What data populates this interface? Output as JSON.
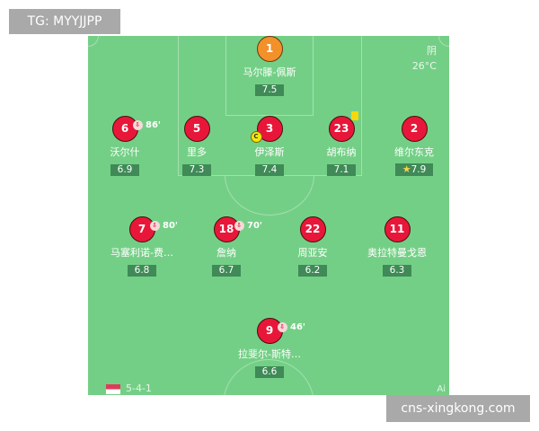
{
  "weather": {
    "condition": "阴",
    "temperature": "26°C"
  },
  "formation": "5-4-1",
  "logo_text": "Ai",
  "watermarks": {
    "top_left": "TG: MYYJJPP",
    "bottom_right": "cns-xingkong.com"
  },
  "colors": {
    "pitch": "#74cf86",
    "player": "#e8173a",
    "goalkeeper": "#f2902a",
    "rating_bg": "#3f8a57"
  },
  "players": [
    {
      "number": "1",
      "name": "马尔滕-佩斯",
      "rating": "7.5"
    },
    {
      "number": "6",
      "name": "沃尔什",
      "rating": "6.9",
      "sub": "86'"
    },
    {
      "number": "5",
      "name": "里多",
      "rating": "7.3"
    },
    {
      "number": "3",
      "name": "伊泽斯",
      "rating": "7.4",
      "captain": "C"
    },
    {
      "number": "23",
      "name": "胡布纳",
      "rating": "7.1",
      "yellow_card": true
    },
    {
      "number": "2",
      "name": "维尔东克",
      "rating": "7.9",
      "best": true
    },
    {
      "number": "7",
      "name": "马塞利诺-费…",
      "rating": "6.8",
      "sub": "80'"
    },
    {
      "number": "18",
      "name": "詹纳",
      "rating": "6.7",
      "sub": "70'"
    },
    {
      "number": "22",
      "name": "周亚安",
      "rating": "6.2"
    },
    {
      "number": "11",
      "name": "奥拉特曼戈恩",
      "rating": "6.3"
    },
    {
      "number": "9",
      "name": "拉斐尔-斯特…",
      "rating": "6.6",
      "sub": "46'"
    }
  ]
}
